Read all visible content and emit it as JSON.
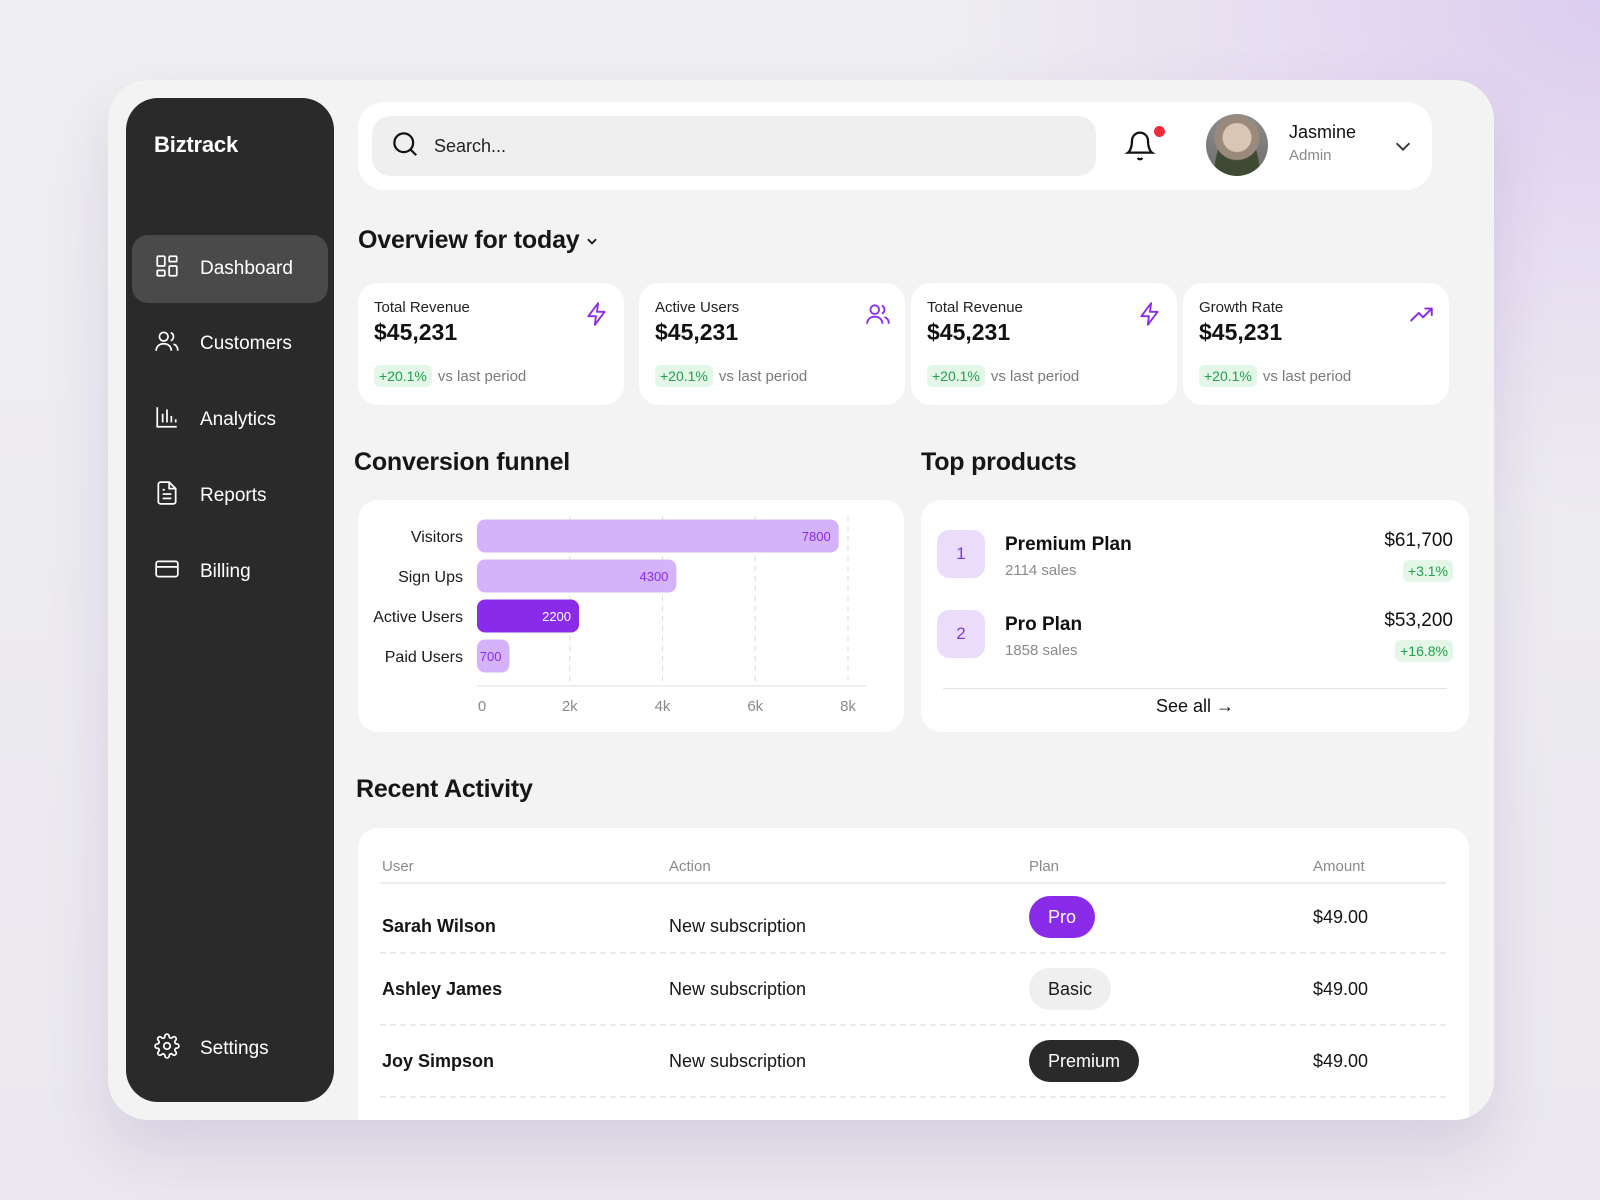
{
  "brand": "Biztrack",
  "sidebar": {
    "items": [
      {
        "label": "Dashboard",
        "icon": "dashboard-icon",
        "active": true
      },
      {
        "label": "Customers",
        "icon": "users-icon"
      },
      {
        "label": "Analytics",
        "icon": "bar-chart-icon"
      },
      {
        "label": "Reports",
        "icon": "document-icon"
      },
      {
        "label": "Billing",
        "icon": "credit-card-icon"
      }
    ],
    "settings": "Settings"
  },
  "search": {
    "placeholder": "Search..."
  },
  "user": {
    "name": "Jasmine",
    "role": "Admin"
  },
  "overview": {
    "title": "Overview for today"
  },
  "stats": [
    {
      "label": "Total Revenue",
      "value": "$45,231",
      "change": "+20.1%",
      "note": "vs last period",
      "icon": "lightning-icon"
    },
    {
      "label": "Active Users",
      "value": "$45,231",
      "change": "+20.1%",
      "note": "vs last period",
      "icon": "users-icon"
    },
    {
      "label": "Total Revenue",
      "value": "$45,231",
      "change": "+20.1%",
      "note": "vs last period",
      "icon": "lightning-icon"
    },
    {
      "label": "Growth Rate",
      "value": "$45,231",
      "change": "+20.1%",
      "note": "vs last period",
      "icon": "trend-up-icon"
    }
  ],
  "funnel": {
    "title": "Conversion funnel"
  },
  "chart_data": {
    "type": "bar",
    "orientation": "horizontal",
    "categories": [
      "Visitors",
      "Sign Ups",
      "Active Users",
      "Paid Users"
    ],
    "values": [
      7800,
      4300,
      2200,
      700
    ],
    "data_labels": [
      "7800",
      "4300",
      "2200",
      "700"
    ],
    "xlim": [
      0,
      8000
    ],
    "xticks": [
      0,
      2000,
      4000,
      6000,
      8000
    ],
    "xtick_labels": [
      "0",
      "2k",
      "4k",
      "6k",
      "8k"
    ],
    "grid": "vertical dashed",
    "colors": [
      "#d5b3fb",
      "#d5b3fb",
      "#8a2bea",
      "#d5b3fb"
    ]
  },
  "products": {
    "title": "Top products",
    "items": [
      {
        "rank": "1",
        "name": "Premium Plan",
        "sales": "2114 sales",
        "amount": "$61,700",
        "change": "+3.1%"
      },
      {
        "rank": "2",
        "name": "Pro Plan",
        "sales": "1858 sales",
        "amount": "$53,200",
        "change": "+16.8%"
      }
    ],
    "see_all": "See all →"
  },
  "activity": {
    "title": "Recent Activity",
    "columns": [
      "User",
      "Action",
      "Plan",
      "Amount"
    ],
    "rows": [
      {
        "user": "Sarah Wilson",
        "action": "New subscription",
        "plan": "Pro",
        "amount": "$49.00"
      },
      {
        "user": "Ashley James",
        "action": "New subscription",
        "plan": "Basic",
        "amount": "$49.00"
      },
      {
        "user": "Joy Simpson",
        "action": "New subscription",
        "plan": "Premium",
        "amount": "$49.00"
      }
    ]
  },
  "colors": {
    "accent": "#8a2bea",
    "accent_light": "#d5b3fb",
    "positive": "#1fa24a",
    "sidebar": "#2a2a2a",
    "notification": "#ef2b3b"
  }
}
